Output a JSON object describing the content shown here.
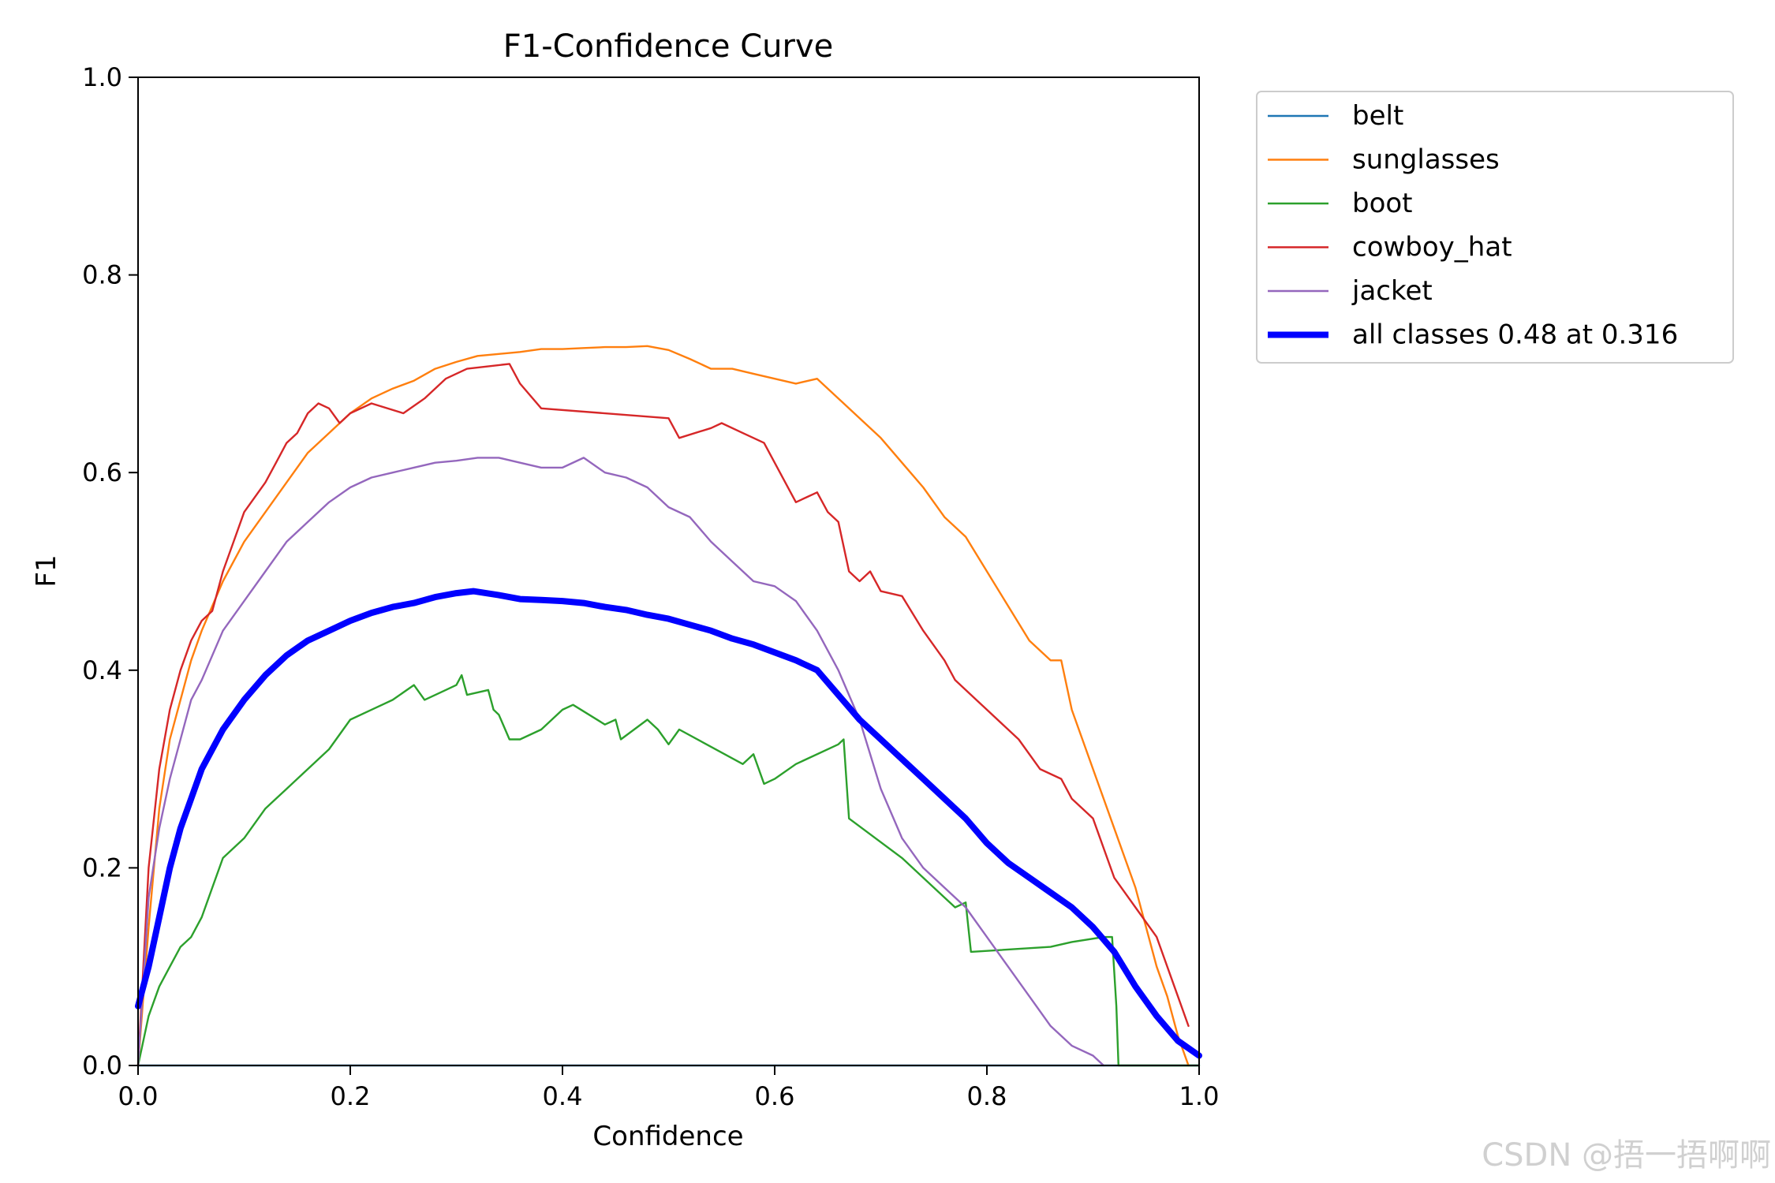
{
  "chart_data": {
    "type": "line",
    "title": "F1-Confidence Curve",
    "xlabel": "Confidence",
    "ylabel": "F1",
    "xlim": [
      0,
      1
    ],
    "ylim": [
      0,
      1
    ],
    "xticks": [
      "0.0",
      "0.2",
      "0.4",
      "0.6",
      "0.8",
      "1.0"
    ],
    "yticks": [
      "0.0",
      "0.2",
      "0.4",
      "0.6",
      "0.8",
      "1.0"
    ],
    "grid": false,
    "legend_position": "outside-top-right",
    "series": [
      {
        "name": "belt",
        "color": "#1f77b4",
        "width": "thin",
        "x": [
          0,
          0.5,
          1.0
        ],
        "y": [
          0,
          0,
          0
        ]
      },
      {
        "name": "sunglasses",
        "color": "#ff7f0e",
        "width": "thin",
        "x": [
          0,
          0.01,
          0.02,
          0.03,
          0.04,
          0.05,
          0.06,
          0.08,
          0.1,
          0.12,
          0.14,
          0.16,
          0.18,
          0.2,
          0.22,
          0.24,
          0.26,
          0.28,
          0.3,
          0.32,
          0.34,
          0.36,
          0.38,
          0.4,
          0.42,
          0.44,
          0.46,
          0.48,
          0.5,
          0.52,
          0.54,
          0.56,
          0.58,
          0.6,
          0.62,
          0.64,
          0.66,
          0.68,
          0.7,
          0.72,
          0.74,
          0.76,
          0.78,
          0.8,
          0.82,
          0.84,
          0.86,
          0.87,
          0.88,
          0.9,
          0.92,
          0.94,
          0.96,
          0.97,
          0.98,
          0.99
        ],
        "y": [
          0,
          0.14,
          0.26,
          0.33,
          0.37,
          0.41,
          0.44,
          0.49,
          0.53,
          0.56,
          0.59,
          0.62,
          0.64,
          0.66,
          0.675,
          0.685,
          0.693,
          0.705,
          0.712,
          0.718,
          0.72,
          0.722,
          0.725,
          0.725,
          0.726,
          0.727,
          0.727,
          0.728,
          0.724,
          0.715,
          0.705,
          0.705,
          0.7,
          0.695,
          0.69,
          0.695,
          0.675,
          0.655,
          0.635,
          0.61,
          0.585,
          0.555,
          0.535,
          0.5,
          0.465,
          0.43,
          0.41,
          0.41,
          0.36,
          0.3,
          0.24,
          0.18,
          0.1,
          0.07,
          0.03,
          0
        ]
      },
      {
        "name": "boot",
        "color": "#2ca02c",
        "width": "thin",
        "x": [
          0,
          0.01,
          0.02,
          0.03,
          0.04,
          0.05,
          0.06,
          0.07,
          0.08,
          0.1,
          0.12,
          0.14,
          0.16,
          0.18,
          0.2,
          0.22,
          0.24,
          0.26,
          0.27,
          0.29,
          0.3,
          0.305,
          0.31,
          0.33,
          0.335,
          0.34,
          0.35,
          0.36,
          0.38,
          0.4,
          0.41,
          0.44,
          0.45,
          0.455,
          0.48,
          0.49,
          0.5,
          0.51,
          0.57,
          0.58,
          0.59,
          0.6,
          0.62,
          0.66,
          0.665,
          0.67,
          0.72,
          0.76,
          0.77,
          0.78,
          0.785,
          0.86,
          0.88,
          0.91,
          0.918,
          0.922,
          0.924,
          1.0
        ],
        "y": [
          0,
          0.05,
          0.08,
          0.1,
          0.12,
          0.13,
          0.15,
          0.18,
          0.21,
          0.23,
          0.26,
          0.28,
          0.3,
          0.32,
          0.35,
          0.36,
          0.37,
          0.385,
          0.37,
          0.38,
          0.385,
          0.395,
          0.375,
          0.38,
          0.36,
          0.355,
          0.33,
          0.33,
          0.34,
          0.36,
          0.365,
          0.345,
          0.35,
          0.33,
          0.35,
          0.34,
          0.325,
          0.34,
          0.305,
          0.315,
          0.285,
          0.29,
          0.305,
          0.325,
          0.33,
          0.25,
          0.21,
          0.17,
          0.16,
          0.165,
          0.115,
          0.12,
          0.125,
          0.13,
          0.13,
          0.06,
          0,
          0
        ]
      },
      {
        "name": "cowboy_hat",
        "color": "#d62728",
        "width": "thin",
        "x": [
          0,
          0.01,
          0.02,
          0.03,
          0.04,
          0.05,
          0.06,
          0.07,
          0.08,
          0.09,
          0.1,
          0.12,
          0.13,
          0.14,
          0.15,
          0.16,
          0.17,
          0.18,
          0.19,
          0.2,
          0.21,
          0.22,
          0.25,
          0.27,
          0.29,
          0.31,
          0.35,
          0.36,
          0.38,
          0.5,
          0.51,
          0.54,
          0.55,
          0.57,
          0.58,
          0.59,
          0.61,
          0.62,
          0.63,
          0.64,
          0.65,
          0.66,
          0.67,
          0.68,
          0.69,
          0.7,
          0.72,
          0.74,
          0.76,
          0.77,
          0.8,
          0.83,
          0.85,
          0.87,
          0.88,
          0.9,
          0.92,
          0.94,
          0.96,
          0.98,
          0.99
        ],
        "y": [
          0,
          0.2,
          0.3,
          0.36,
          0.4,
          0.43,
          0.45,
          0.46,
          0.5,
          0.53,
          0.56,
          0.59,
          0.61,
          0.63,
          0.64,
          0.66,
          0.67,
          0.665,
          0.65,
          0.66,
          0.665,
          0.67,
          0.66,
          0.675,
          0.695,
          0.705,
          0.71,
          0.69,
          0.665,
          0.655,
          0.635,
          0.645,
          0.65,
          0.64,
          0.635,
          0.63,
          0.59,
          0.57,
          0.575,
          0.58,
          0.56,
          0.55,
          0.5,
          0.49,
          0.5,
          0.48,
          0.475,
          0.44,
          0.41,
          0.39,
          0.36,
          0.33,
          0.3,
          0.29,
          0.27,
          0.25,
          0.19,
          0.16,
          0.13,
          0.07,
          0.04
        ]
      },
      {
        "name": "jacket",
        "color": "#9467bd",
        "width": "thin",
        "x": [
          0,
          0.01,
          0.02,
          0.03,
          0.04,
          0.05,
          0.06,
          0.08,
          0.1,
          0.12,
          0.14,
          0.16,
          0.18,
          0.2,
          0.22,
          0.24,
          0.26,
          0.28,
          0.3,
          0.32,
          0.34,
          0.36,
          0.38,
          0.4,
          0.42,
          0.44,
          0.46,
          0.48,
          0.5,
          0.52,
          0.54,
          0.56,
          0.58,
          0.6,
          0.62,
          0.64,
          0.66,
          0.68,
          0.7,
          0.72,
          0.74,
          0.76,
          0.78,
          0.8,
          0.82,
          0.84,
          0.86,
          0.88,
          0.9,
          0.91
        ],
        "y": [
          0,
          0.17,
          0.24,
          0.29,
          0.33,
          0.37,
          0.39,
          0.44,
          0.47,
          0.5,
          0.53,
          0.55,
          0.57,
          0.585,
          0.595,
          0.6,
          0.605,
          0.61,
          0.612,
          0.615,
          0.615,
          0.61,
          0.605,
          0.605,
          0.615,
          0.6,
          0.595,
          0.585,
          0.565,
          0.555,
          0.53,
          0.51,
          0.49,
          0.485,
          0.47,
          0.44,
          0.4,
          0.35,
          0.28,
          0.23,
          0.2,
          0.18,
          0.16,
          0.13,
          0.1,
          0.07,
          0.04,
          0.02,
          0.01,
          0
        ]
      },
      {
        "name": "all classes 0.48 at 0.316",
        "color": "#0000ff",
        "width": "thick",
        "x": [
          0,
          0.01,
          0.02,
          0.03,
          0.04,
          0.05,
          0.06,
          0.08,
          0.1,
          0.12,
          0.14,
          0.16,
          0.18,
          0.2,
          0.22,
          0.24,
          0.26,
          0.28,
          0.3,
          0.316,
          0.34,
          0.36,
          0.38,
          0.4,
          0.42,
          0.44,
          0.46,
          0.48,
          0.5,
          0.52,
          0.54,
          0.56,
          0.58,
          0.6,
          0.62,
          0.64,
          0.66,
          0.68,
          0.7,
          0.72,
          0.74,
          0.76,
          0.78,
          0.8,
          0.82,
          0.84,
          0.86,
          0.88,
          0.9,
          0.92,
          0.94,
          0.96,
          0.98,
          1.0
        ],
        "y": [
          0.06,
          0.1,
          0.15,
          0.2,
          0.24,
          0.27,
          0.3,
          0.34,
          0.37,
          0.395,
          0.415,
          0.43,
          0.44,
          0.45,
          0.458,
          0.464,
          0.468,
          0.474,
          0.478,
          0.48,
          0.476,
          0.472,
          0.471,
          0.47,
          0.468,
          0.464,
          0.461,
          0.456,
          0.452,
          0.446,
          0.44,
          0.432,
          0.426,
          0.418,
          0.41,
          0.4,
          0.375,
          0.35,
          0.33,
          0.31,
          0.29,
          0.27,
          0.25,
          0.225,
          0.205,
          0.19,
          0.175,
          0.16,
          0.14,
          0.115,
          0.08,
          0.05,
          0.025,
          0.01
        ]
      }
    ]
  },
  "watermark": "CSDN @捂一捂啊啊"
}
